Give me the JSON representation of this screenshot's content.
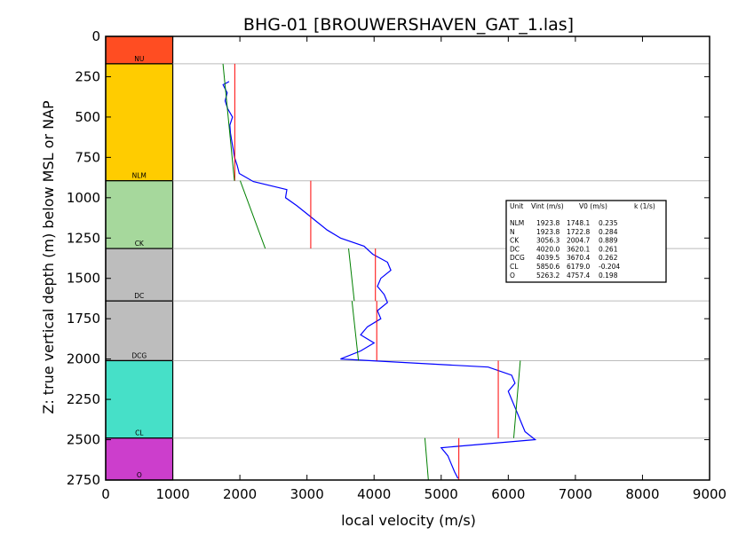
{
  "chart_data": {
    "type": "line",
    "title": "BHG-01 [BROUWERSHAVEN_GAT_1.las]",
    "xlabel": "local velocity (m/s)",
    "ylabel": "Z: true vertical depth (m) below MSL or NAP",
    "xlim": [
      0,
      9000
    ],
    "ylim": [
      2750,
      0
    ],
    "y_inverted": true,
    "x_ticks": [
      "0",
      "1000",
      "2000",
      "3000",
      "4000",
      "5000",
      "6000",
      "7000",
      "8000",
      "9000"
    ],
    "y_ticks": [
      "0",
      "250",
      "500",
      "750",
      "1000",
      "1250",
      "1500",
      "1750",
      "2000",
      "2250",
      "2500",
      "2750"
    ],
    "colors": {
      "log": "#0000ff",
      "interval_velocity": "#ff0000",
      "linear_fit": "#008000",
      "boundary": "#bbbbbb"
    },
    "units": [
      {
        "name": "NU",
        "top": 0,
        "base": 170,
        "color": "#ff4d22"
      },
      {
        "name": "NLM",
        "top": 170,
        "base": 895,
        "color": "#ffcc00"
      },
      {
        "name": "CK",
        "top": 895,
        "base": 1315,
        "color": "#a6d89c"
      },
      {
        "name": "DC",
        "top": 1315,
        "base": 1640,
        "color": "#bdbdbd"
      },
      {
        "name": "DCG",
        "top": 1640,
        "base": 2010,
        "color": "#bdbdbd"
      },
      {
        "name": "CL",
        "top": 2010,
        "base": 2490,
        "color": "#46e0c8"
      },
      {
        "name": "O",
        "top": 2490,
        "base": 2750,
        "color": "#cc3ecc"
      }
    ],
    "log_profile": [
      [
        280,
        1840
      ],
      [
        300,
        1750
      ],
      [
        350,
        1810
      ],
      [
        400,
        1780
      ],
      [
        450,
        1820
      ],
      [
        500,
        1890
      ],
      [
        550,
        1850
      ],
      [
        600,
        1860
      ],
      [
        650,
        1880
      ],
      [
        700,
        1900
      ],
      [
        750,
        1920
      ],
      [
        800,
        1960
      ],
      [
        850,
        1990
      ],
      [
        900,
        2200
      ],
      [
        950,
        2700
      ],
      [
        1000,
        2680
      ],
      [
        1050,
        2850
      ],
      [
        1100,
        3000
      ],
      [
        1150,
        3150
      ],
      [
        1200,
        3300
      ],
      [
        1250,
        3500
      ],
      [
        1300,
        3850
      ],
      [
        1350,
        3980
      ],
      [
        1400,
        4200
      ],
      [
        1450,
        4250
      ],
      [
        1500,
        4100
      ],
      [
        1550,
        4050
      ],
      [
        1600,
        4150
      ],
      [
        1650,
        4200
      ],
      [
        1700,
        4050
      ],
      [
        1750,
        4100
      ],
      [
        1800,
        3900
      ],
      [
        1850,
        3800
      ],
      [
        1900,
        4000
      ],
      [
        1950,
        3800
      ],
      [
        2000,
        3500
      ],
      [
        2050,
        5700
      ],
      [
        2100,
        6050
      ],
      [
        2150,
        6100
      ],
      [
        2200,
        6000
      ],
      [
        2250,
        6050
      ],
      [
        2300,
        6100
      ],
      [
        2350,
        6150
      ],
      [
        2400,
        6200
      ],
      [
        2450,
        6250
      ],
      [
        2500,
        6400
      ],
      [
        2550,
        5000
      ],
      [
        2600,
        5100
      ],
      [
        2650,
        5150
      ],
      [
        2700,
        5200
      ],
      [
        2740,
        5250
      ]
    ],
    "legend": {
      "placement": "right",
      "headers": [
        "Unit",
        "Vint (m/s)",
        "V0 (m/s)",
        "k (1/s)"
      ],
      "rows": [
        [
          "NLM",
          "1923.8",
          "1748.1",
          "0.235"
        ],
        [
          "N",
          "1923.8",
          "1722.8",
          "0.284"
        ],
        [
          "CK",
          "3056.3",
          "2004.7",
          "0.889"
        ],
        [
          "DC",
          "4020.0",
          "3620.1",
          "0.261"
        ],
        [
          "DCG",
          "4039.5",
          "3670.4",
          "0.262"
        ],
        [
          "CL",
          "5850.6",
          "6179.0",
          "-0.204"
        ],
        [
          "O",
          "5263.2",
          "4757.4",
          "0.198"
        ]
      ]
    }
  }
}
